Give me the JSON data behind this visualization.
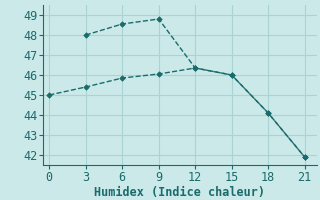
{
  "xlabel": "Humidex (Indice chaleur)",
  "bg_color": "#cce9e9",
  "line_color": "#1a6b6b",
  "grid_color": "#aad4d4",
  "line1_x": [
    3,
    6,
    9,
    12,
    15,
    18,
    21
  ],
  "line1_y": [
    48.0,
    48.55,
    48.8,
    46.35,
    46.0,
    44.1,
    41.9
  ],
  "line2_x": [
    0,
    3,
    6,
    9,
    12,
    15,
    18,
    21
  ],
  "line2_y": [
    45.0,
    45.4,
    45.85,
    46.05,
    46.35,
    46.0,
    44.1,
    41.9
  ],
  "xlim": [
    -0.5,
    22.0
  ],
  "ylim": [
    41.5,
    49.5
  ],
  "xticks": [
    0,
    3,
    6,
    9,
    12,
    15,
    18,
    21
  ],
  "yticks": [
    42,
    43,
    44,
    45,
    46,
    47,
    48,
    49
  ],
  "tick_fontsize": 8.5,
  "xlabel_fontsize": 8.5
}
